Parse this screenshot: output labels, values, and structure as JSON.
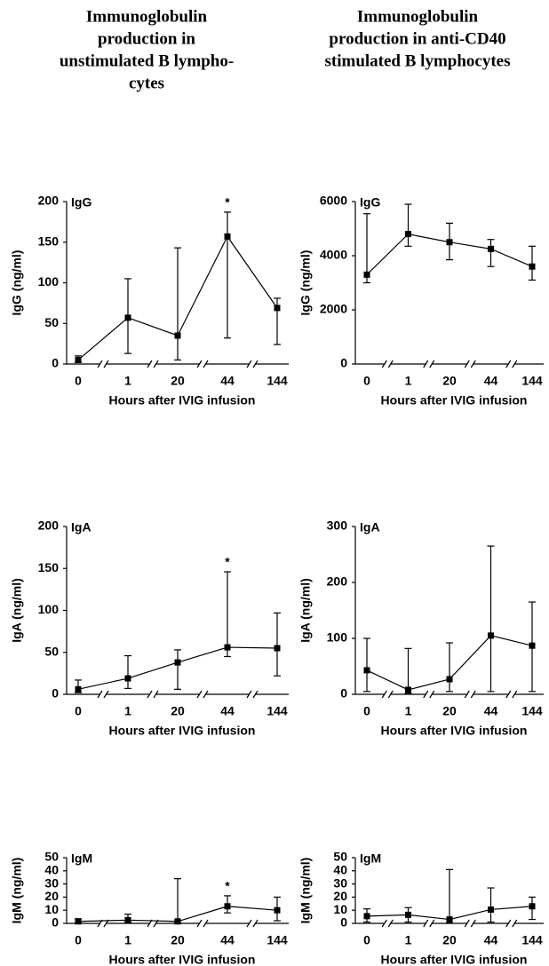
{
  "column_headers": [
    [
      "Immunoglobulin",
      "production in",
      "unstimulated B lympho-",
      "cytes"
    ],
    [
      "Immunoglobulin",
      "production in anti-CD40",
      "stimulated B lymphocytes"
    ]
  ],
  "chart_data": [
    {
      "type": "line",
      "panel_label": "IgG",
      "ylabel": "IgG (ng/ml)",
      "xlabel": "Hours after IVIG infusion",
      "color": "#000000",
      "categories": [
        "0",
        "1",
        "20",
        "44",
        "144"
      ],
      "values": [
        5,
        57,
        35,
        157,
        69
      ],
      "lower": [
        2,
        13,
        5,
        32,
        24
      ],
      "upper": [
        10,
        105,
        143,
        187,
        81
      ],
      "significance": [
        null,
        null,
        null,
        "*",
        null
      ],
      "ylim": [
        0,
        200
      ],
      "yticks": [
        0,
        50,
        100,
        150,
        200
      ]
    },
    {
      "type": "line",
      "panel_label": "IgG",
      "ylabel": "IgG (ng/ml)",
      "xlabel": "Hours after IVIG infusion",
      "color": "#000000",
      "categories": [
        "0",
        "1",
        "20",
        "44",
        "144"
      ],
      "values": [
        3300,
        4800,
        4500,
        4250,
        3600
      ],
      "lower": [
        3000,
        4350,
        3850,
        3600,
        3100
      ],
      "upper": [
        5550,
        5900,
        5200,
        4600,
        4350
      ],
      "significance": [
        null,
        null,
        null,
        null,
        null
      ],
      "ylim": [
        0,
        6000
      ],
      "yticks": [
        0,
        2000,
        4000,
        6000
      ]
    },
    {
      "type": "line",
      "panel_label": "IgA",
      "ylabel": "IgA (ng/ml)",
      "xlabel": "Hours after IVIG infusion",
      "color": "#000000",
      "categories": [
        "0",
        "1",
        "20",
        "44",
        "144"
      ],
      "values": [
        6,
        19,
        38,
        56,
        55
      ],
      "lower": [
        2,
        7,
        6,
        45,
        22
      ],
      "upper": [
        17,
        46,
        53,
        146,
        97
      ],
      "significance": [
        null,
        null,
        null,
        "*",
        null
      ],
      "ylim": [
        0,
        200
      ],
      "yticks": [
        0,
        50,
        100,
        150,
        200
      ]
    },
    {
      "type": "line",
      "panel_label": "IgA",
      "ylabel": "IgA (ng/ml)",
      "xlabel": "Hours after IVIG infusion",
      "color": "#000000",
      "categories": [
        "0",
        "1",
        "20",
        "44",
        "144"
      ],
      "values": [
        43,
        8,
        27,
        105,
        87
      ],
      "lower": [
        5,
        2,
        5,
        5,
        5
      ],
      "upper": [
        100,
        82,
        92,
        265,
        165
      ],
      "significance": [
        null,
        null,
        null,
        null,
        null
      ],
      "ylim": [
        0,
        300
      ],
      "yticks": [
        0,
        100,
        200,
        300
      ]
    },
    {
      "type": "line",
      "panel_label": "IgM",
      "ylabel": "IgM (ng/ml)",
      "xlabel": "Hours after IVIG infusion",
      "color": "#000000",
      "categories": [
        "0",
        "1",
        "20",
        "44",
        "144"
      ],
      "values": [
        1.5,
        2.5,
        1.5,
        13,
        10
      ],
      "lower": [
        0.5,
        1,
        0.5,
        8,
        2
      ],
      "upper": [
        3.5,
        7,
        34,
        21,
        20
      ],
      "significance": [
        null,
        null,
        null,
        "*",
        null
      ],
      "ylim": [
        0,
        50
      ],
      "yticks": [
        0,
        10,
        20,
        30,
        40,
        50
      ]
    },
    {
      "type": "line",
      "panel_label": "IgM",
      "ylabel": "IgM (ng/ml)",
      "xlabel": "Hours after IVIG infusion",
      "color": "#000000",
      "categories": [
        "0",
        "1",
        "20",
        "44",
        "144"
      ],
      "values": [
        5.5,
        6.5,
        3,
        10.5,
        13
      ],
      "lower": [
        1,
        1,
        0.5,
        1,
        3
      ],
      "upper": [
        11,
        12,
        41,
        27,
        20
      ],
      "significance": [
        null,
        null,
        null,
        null,
        null
      ],
      "ylim": [
        0,
        50
      ],
      "yticks": [
        0,
        10,
        20,
        30,
        40,
        50
      ]
    }
  ]
}
